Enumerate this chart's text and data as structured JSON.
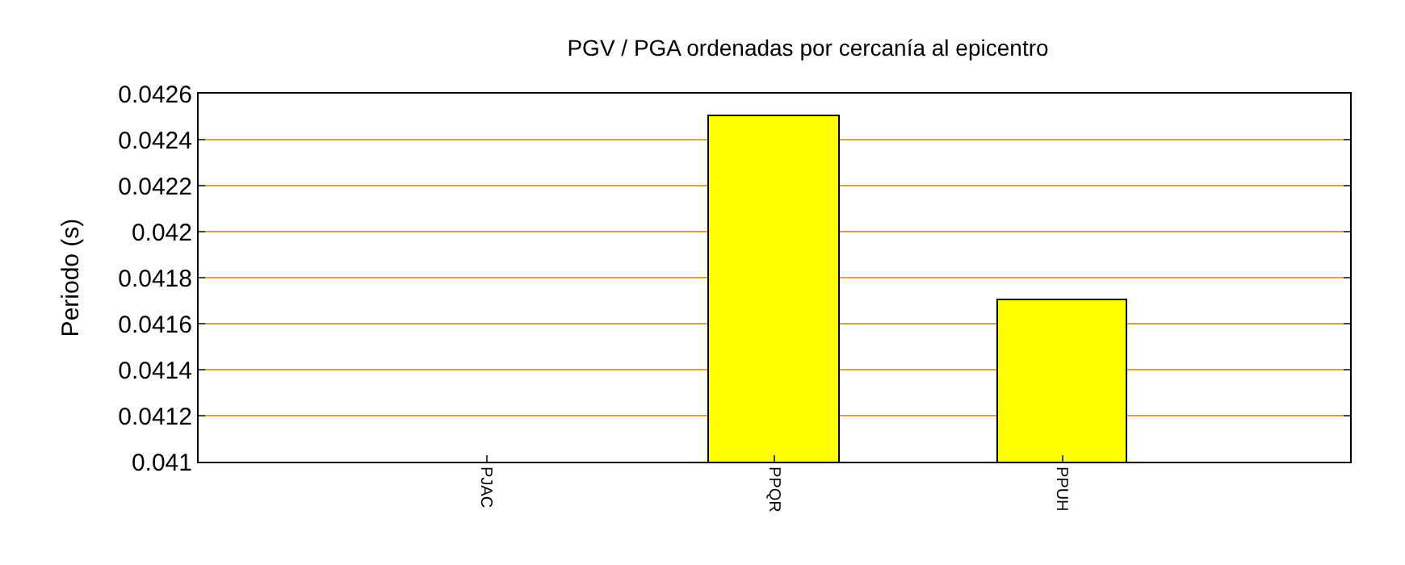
{
  "chart_data": {
    "type": "bar",
    "title": "PGV / PGA ordenadas por cercanía al epicentro",
    "ylabel": "Periodo (s)",
    "categories": [
      "PJAC",
      "PPQR",
      "PPUH"
    ],
    "values": [
      null,
      0.0425,
      0.0417
    ],
    "color": "#ffff00",
    "ylim": [
      0.041,
      0.0426
    ],
    "yticks": [
      0.041,
      0.0412,
      0.0414,
      0.0416,
      0.0418,
      0.042,
      0.0422,
      0.0424,
      0.0426
    ],
    "grid": "y"
  }
}
